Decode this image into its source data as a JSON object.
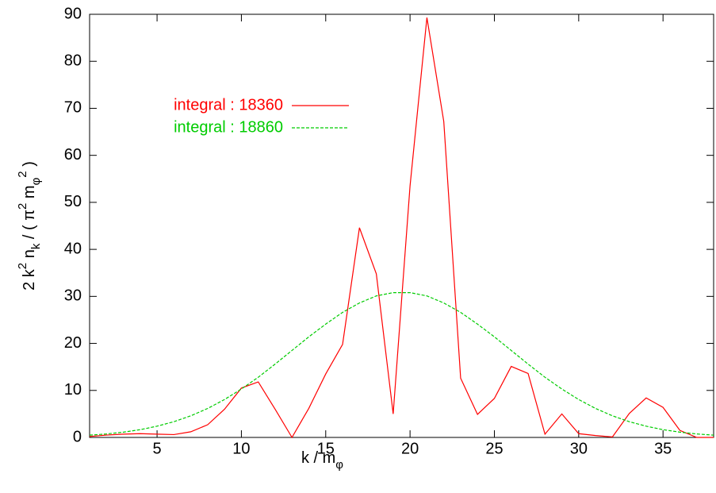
{
  "chart_data": {
    "type": "line",
    "xlabel": [
      {
        "text": "k / m"
      },
      {
        "text": "φ",
        "shift": "sub"
      }
    ],
    "ylabel": [
      {
        "text": "2 k"
      },
      {
        "text": "2",
        "shift": "sup"
      },
      {
        "text": " n"
      },
      {
        "text": "k",
        "shift": "sub"
      },
      {
        "text": " / ( π"
      },
      {
        "text": "2",
        "shift": "sup"
      },
      {
        "text": " m"
      },
      {
        "text": "φ",
        "shift": "sub"
      },
      {
        "text": "2",
        "shift": "sup"
      },
      {
        "text": " )"
      }
    ],
    "x": [
      1,
      2,
      3,
      4,
      5,
      6,
      7,
      8,
      9,
      10,
      11,
      12,
      13,
      14,
      15,
      16,
      17,
      18,
      19,
      20,
      21,
      22,
      23,
      24,
      25,
      26,
      27,
      28,
      29,
      30,
      31,
      32,
      33,
      34,
      35,
      36,
      37,
      38
    ],
    "series": [
      {
        "name": "integral : 18360",
        "color": "#ff0000",
        "dash": false,
        "values": [
          0.2,
          0.5,
          0.7,
          0.8,
          0.7,
          0.6,
          1.2,
          2.7,
          6,
          10.5,
          11.8,
          6,
          0,
          6.2,
          13.5,
          19.8,
          44.6,
          34.8,
          5,
          53.5,
          89.3,
          67.2,
          12.6,
          4.9,
          8.3,
          15.1,
          13.6,
          0.7,
          5,
          0.8,
          0.4,
          0.1,
          5.1,
          8.4,
          6.4,
          1.5,
          0,
          0
        ]
      },
      {
        "name": "integral : 18860",
        "color": "#00cc00",
        "dash": true,
        "values": [
          0.48,
          0.74,
          1.12,
          1.65,
          2.39,
          3.35,
          4.6,
          6.16,
          8.06,
          10.3,
          12.8,
          15.6,
          18.5,
          21.4,
          24.1,
          26.6,
          28.6,
          30.1,
          30.8,
          30.8,
          30.1,
          28.6,
          26.6,
          24.1,
          21.4,
          18.5,
          15.6,
          12.8,
          10.3,
          8.06,
          6.16,
          4.6,
          3.35,
          2.39,
          1.65,
          1.12,
          0.74,
          0.48
        ]
      }
    ],
    "xlim": [
      1,
      38
    ],
    "xticks": [
      5,
      10,
      15,
      20,
      25,
      30,
      35
    ],
    "ylim": [
      0,
      90
    ],
    "yticks": [
      0,
      10,
      20,
      30,
      40,
      50,
      60,
      70,
      80,
      90
    ],
    "legend": "upper-left"
  }
}
